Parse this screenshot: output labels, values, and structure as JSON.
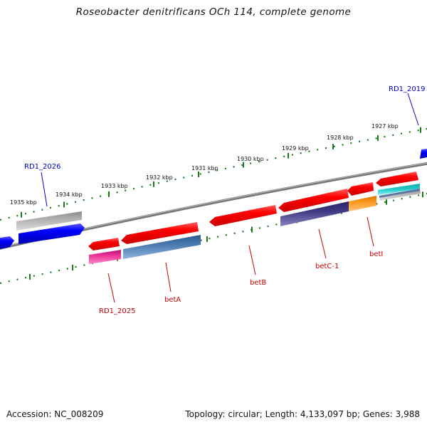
{
  "header": {
    "title": "Roseobacter denitrificans OCh 114, complete genome"
  },
  "footer": {
    "accession": "Accession: NC_008209",
    "summary": "Topology: circular; Length: 4,133,097 bp; Genes: 3,988"
  },
  "scale_labels": [
    "1927 kbp",
    "1928 kbp",
    "1929 kbp",
    "1930 kbp",
    "1931 kbp",
    "1932 kbp",
    "1933 kbp",
    "1934 kbp",
    "1935 kbp"
  ],
  "genes": [
    {
      "label": "RD1_2019",
      "color": "#0000cc"
    },
    {
      "label": "RD1_2026",
      "color": "#0000cc"
    },
    {
      "label": "RD1_2025",
      "color": "#cc0000"
    },
    {
      "label": "betA",
      "color": "#cc0000"
    },
    {
      "label": "betB",
      "color": "#cc0000"
    },
    {
      "label": "betC-1",
      "color": "#cc0000"
    },
    {
      "label": "betI",
      "color": "#cc0000"
    }
  ],
  "colors": {
    "backbone": "#888888",
    "ticks": "#1a7a1a",
    "forward_cds": "#0000ee",
    "reverse_cds": "#ee0000",
    "label_forward": "#0000cc",
    "label_reverse": "#cc0000",
    "feature_gray": "#bbbbbb",
    "feature_magenta": "#ee3399",
    "feature_steelblue": "#4a7ab0",
    "feature_indigo": "#403a85",
    "feature_orange": "#ff9922",
    "feature_cyan": "#22cccc"
  }
}
